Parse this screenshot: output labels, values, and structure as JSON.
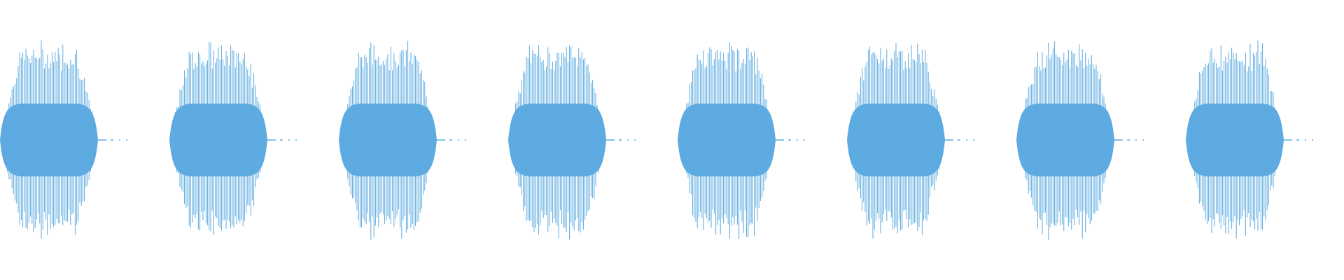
{
  "waveform": {
    "color": "#5DABE1",
    "burst_count": 8,
    "bursts": [
      {
        "index": 1
      },
      {
        "index": 2
      },
      {
        "index": 3
      },
      {
        "index": 4
      },
      {
        "index": 5
      },
      {
        "index": 6
      },
      {
        "index": 7
      },
      {
        "index": 8
      }
    ]
  }
}
